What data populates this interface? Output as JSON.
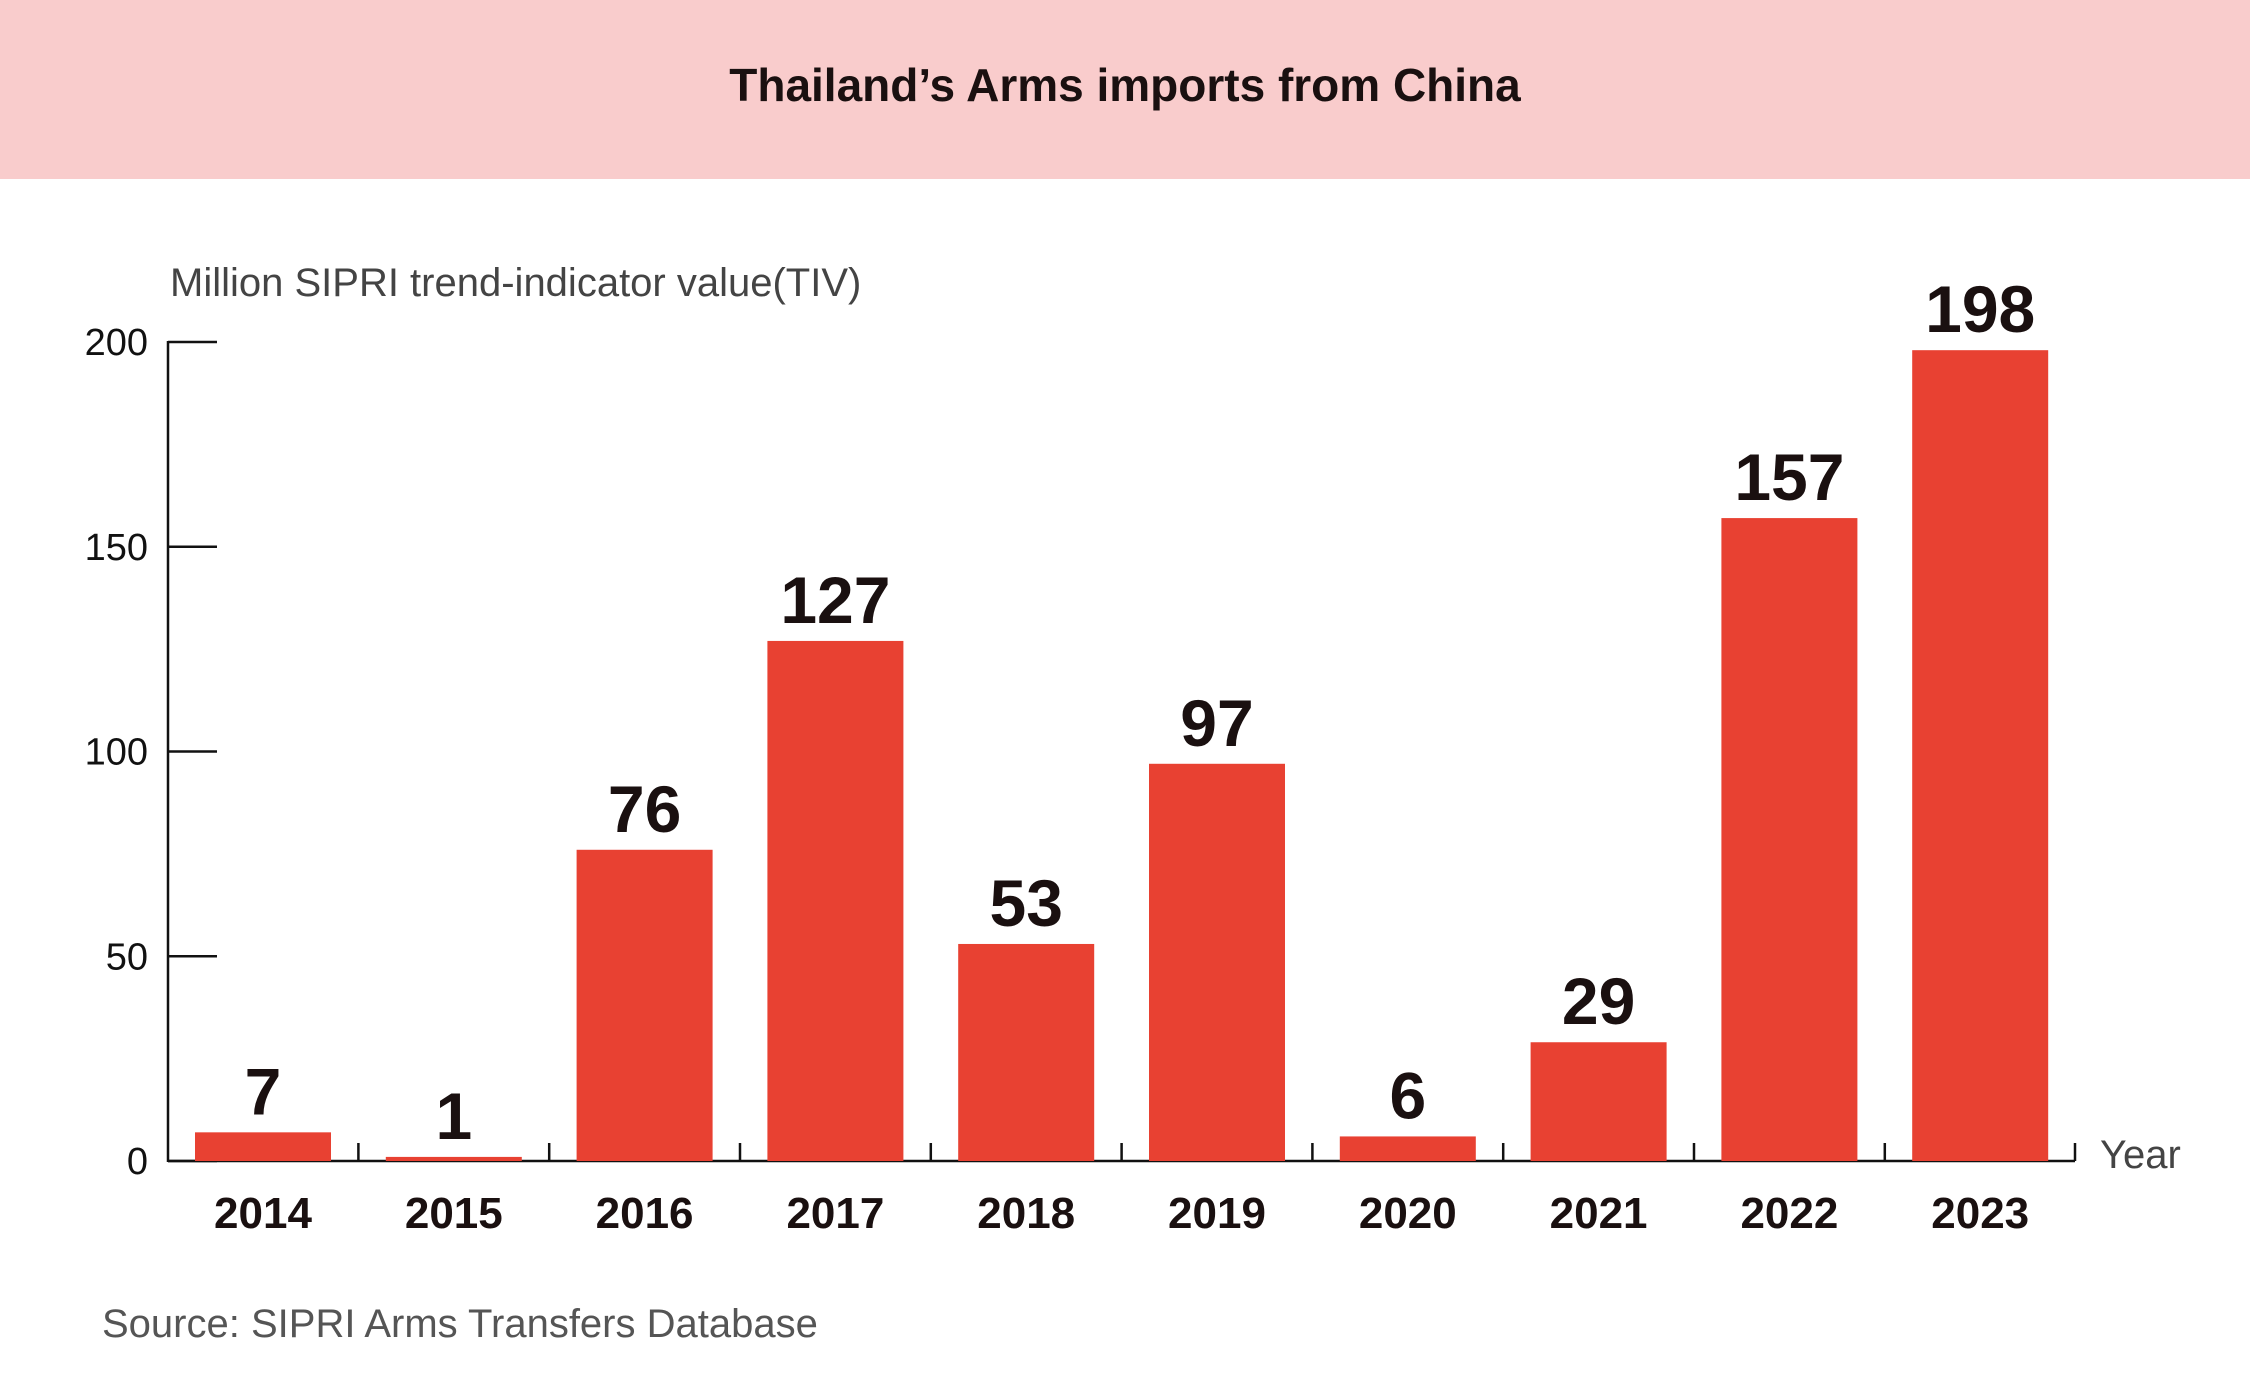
{
  "title": "Thailand’s Arms imports from China",
  "source": "Source: SIPRI Arms Transfers Database",
  "chart_data": {
    "type": "bar",
    "title": "Thailand’s Arms imports from China",
    "ylabel": "Million SIPRI trend-indicator value(TIV)",
    "xlabel": "Year",
    "categories": [
      "2014",
      "2015",
      "2016",
      "2017",
      "2018",
      "2019",
      "2020",
      "2021",
      "2022",
      "2023"
    ],
    "values": [
      7,
      1,
      76,
      127,
      53,
      97,
      6,
      29,
      157,
      198
    ],
    "ylim": [
      0,
      200
    ],
    "yticks": [
      0,
      50,
      100,
      150,
      200
    ],
    "grid": false,
    "bar_color": "#e84132",
    "header_color": "#f9cccc"
  }
}
